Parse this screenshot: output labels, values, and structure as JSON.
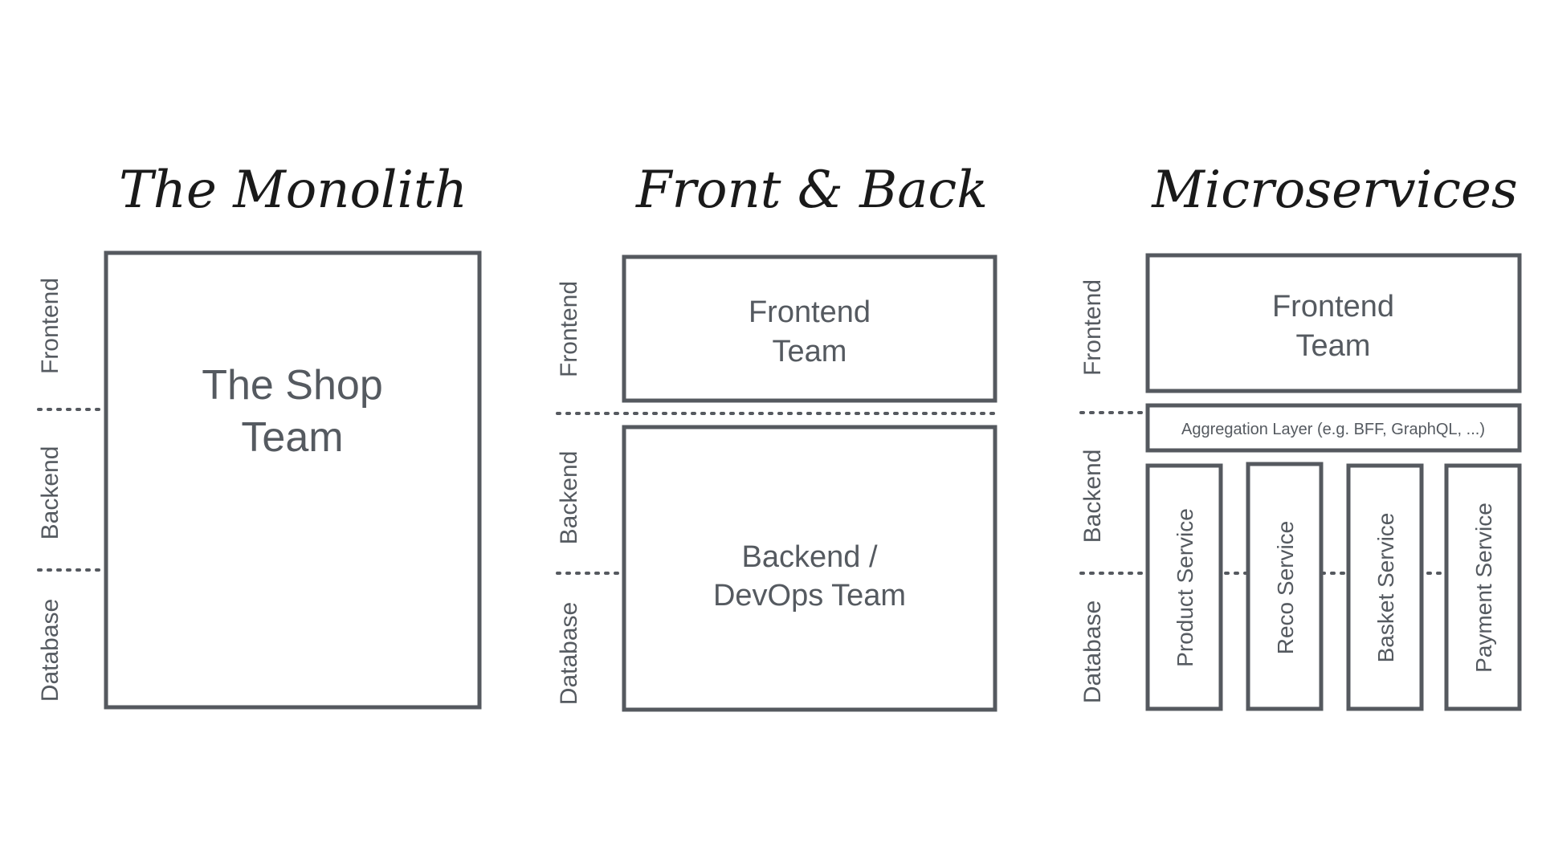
{
  "colors": {
    "stroke": "#55595f",
    "text": "#555a60",
    "title": "#1a1a1a",
    "background": "#ffffff"
  },
  "monolith": {
    "title": "The Monolith",
    "layers": {
      "frontend": "Frontend",
      "backend": "Backend",
      "database": "Database"
    },
    "team": {
      "line1": "The Shop",
      "line2": "Team"
    }
  },
  "front_back": {
    "title": "Front & Back",
    "layers": {
      "frontend": "Frontend",
      "backend": "Backend",
      "database": "Database"
    },
    "frontend_team": {
      "line1": "Frontend",
      "line2": "Team"
    },
    "backend_team": {
      "line1": "Backend /",
      "line2": "DevOps Team"
    }
  },
  "microservices": {
    "title": "Microservices",
    "layers": {
      "frontend": "Frontend",
      "backend": "Backend",
      "database": "Database"
    },
    "frontend_team": {
      "line1": "Frontend",
      "line2": "Team"
    },
    "aggregation": "Aggregation Layer (e.g. BFF, GraphQL, ...)",
    "services": [
      "Product Service",
      "Reco Service",
      "Basket Service",
      "Payment Service"
    ]
  }
}
